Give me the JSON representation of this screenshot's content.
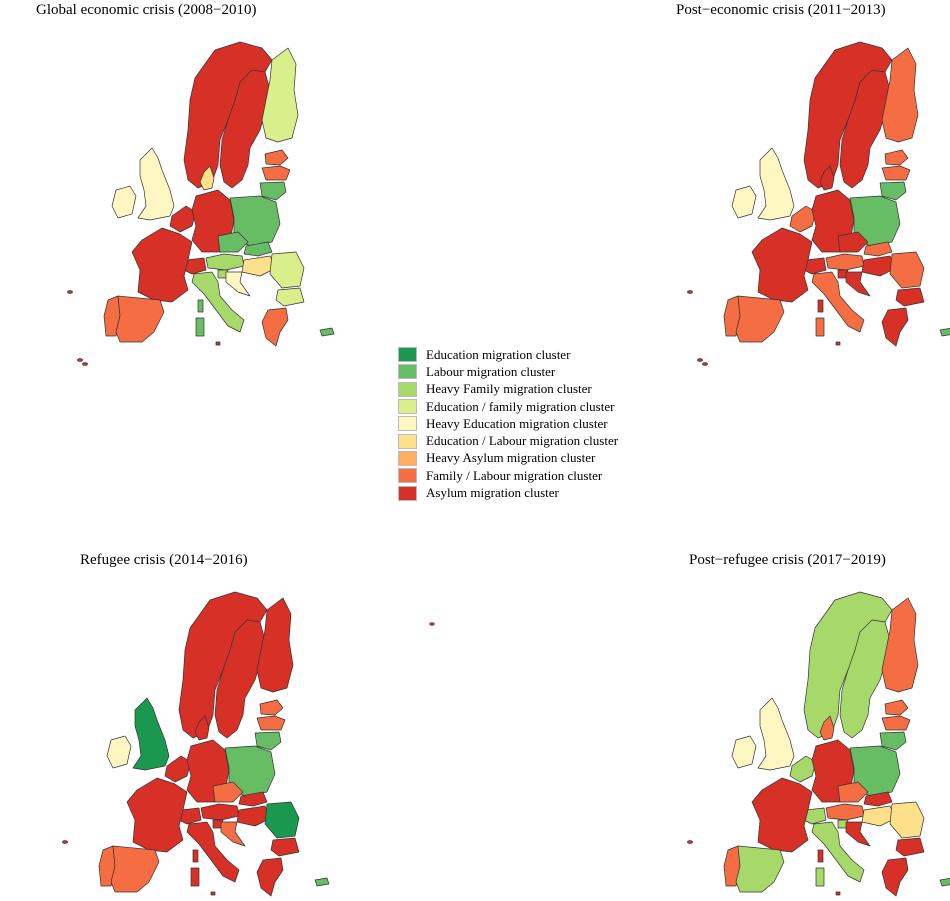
{
  "colors": {
    "education": "#1a9850",
    "labour": "#66bd63",
    "heavy_family": "#a6d96a",
    "education_family": "#d9ef8b",
    "heavy_education": "#fff7c2",
    "education_labour": "#fee08b",
    "heavy_asylum": "#fdae61",
    "family_labour": "#f46d43",
    "asylum": "#d73027"
  },
  "legend": [
    {
      "label": "Education migration cluster",
      "key": "education"
    },
    {
      "label": "Labour migration cluster",
      "key": "labour"
    },
    {
      "label": "Heavy Family migration cluster",
      "key": "heavy_family"
    },
    {
      "label": "Education / family migration cluster",
      "key": "education_family"
    },
    {
      "label": "Heavy Education migration cluster",
      "key": "heavy_education"
    },
    {
      "label": "Education / Labour migration cluster",
      "key": "education_labour"
    },
    {
      "label": "Heavy Asylum migration cluster",
      "key": "heavy_asylum"
    },
    {
      "label": "Family / Labour migration cluster",
      "key": "family_labour"
    },
    {
      "label": "Asylum migration cluster",
      "key": "asylum"
    }
  ],
  "panels": [
    {
      "title": "Global economic crisis (2008−2010)",
      "regions": {
        "ireland": "heavy_education",
        "uk": "heavy_education",
        "portugal": "family_labour",
        "spain": "family_labour",
        "france": "asylum",
        "benelux": "asylum",
        "germany": "asylum",
        "denmark": "education_labour",
        "norway": "asylum",
        "sweden": "asylum",
        "finland": "education_family",
        "estonia": "family_labour",
        "latvia": "family_labour",
        "lithuania": "labour",
        "poland": "labour",
        "czechia": "labour",
        "slovakia": "labour",
        "austria": "heavy_family",
        "switzerland": "asylum",
        "hungary": "education_labour",
        "romania": "education_family",
        "bulgaria": "education_family",
        "italy": "heavy_family",
        "croatia": "heavy_education",
        "slovenia": "heavy_family",
        "greece": "family_labour",
        "corsica": "labour",
        "sardinia": "labour",
        "cyprus": "labour",
        "malta": "asylum"
      }
    },
    {
      "title": "Post−economic crisis (2011−2013)",
      "regions": {
        "ireland": "heavy_education",
        "uk": "heavy_education",
        "portugal": "family_labour",
        "spain": "family_labour",
        "france": "asylum",
        "benelux": "family_labour",
        "germany": "asylum",
        "denmark": "asylum",
        "norway": "asylum",
        "sweden": "asylum",
        "finland": "family_labour",
        "estonia": "family_labour",
        "latvia": "family_labour",
        "lithuania": "labour",
        "poland": "labour",
        "czechia": "asylum",
        "slovakia": "family_labour",
        "austria": "family_labour",
        "switzerland": "asylum",
        "hungary": "asylum",
        "romania": "family_labour",
        "bulgaria": "asylum",
        "italy": "family_labour",
        "croatia": "asylum",
        "slovenia": "asylum",
        "greece": "asylum",
        "corsica": "asylum",
        "sardinia": "family_labour",
        "cyprus": "labour",
        "malta": "asylum"
      }
    },
    {
      "title": "Refugee crisis (2014−2016)",
      "regions": {
        "ireland": "heavy_education",
        "uk": "education",
        "portugal": "family_labour",
        "spain": "family_labour",
        "france": "asylum",
        "benelux": "asylum",
        "germany": "asylum",
        "denmark": "asylum",
        "norway": "asylum",
        "sweden": "asylum",
        "finland": "asylum",
        "estonia": "family_labour",
        "latvia": "family_labour",
        "lithuania": "labour",
        "poland": "labour",
        "czechia": "family_labour",
        "slovakia": "asylum",
        "austria": "asylum",
        "switzerland": "asylum",
        "hungary": "asylum",
        "romania": "education",
        "bulgaria": "asylum",
        "italy": "asylum",
        "croatia": "family_labour",
        "slovenia": "asylum",
        "greece": "asylum",
        "corsica": "asylum",
        "sardinia": "asylum",
        "cyprus": "labour",
        "malta": "asylum"
      }
    },
    {
      "title": "Post−refugee crisis (2017−2019)",
      "regions": {
        "ireland": "heavy_education",
        "uk": "heavy_education",
        "portugal": "family_labour",
        "spain": "heavy_family",
        "france": "asylum",
        "benelux": "heavy_family",
        "germany": "asylum",
        "denmark": "family_labour",
        "norway": "heavy_family",
        "sweden": "heavy_family",
        "finland": "family_labour",
        "estonia": "family_labour",
        "latvia": "family_labour",
        "lithuania": "labour",
        "poland": "labour",
        "czechia": "family_labour",
        "slovakia": "asylum",
        "austria": "family_labour",
        "switzerland": "heavy_family",
        "hungary": "education_labour",
        "romania": "education_labour",
        "bulgaria": "asylum",
        "italy": "heavy_family",
        "croatia": "asylum",
        "slovenia": "heavy_family",
        "greece": "asylum",
        "corsica": "asylum",
        "sardinia": "heavy_family",
        "cyprus": "labour",
        "malta": "asylum"
      }
    }
  ]
}
